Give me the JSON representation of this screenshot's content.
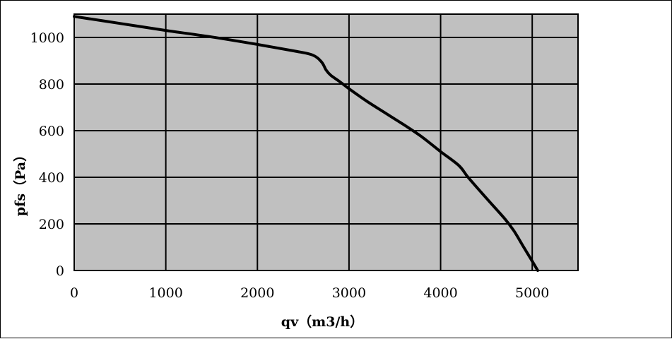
{
  "chart_data": {
    "type": "line",
    "title": "",
    "xlabel": "qv（m3/h）",
    "ylabel": "pfs（Pa）",
    "xlim": [
      0,
      5500
    ],
    "ylim": [
      0,
      1100
    ],
    "x_ticks": [
      0,
      1000,
      2000,
      3000,
      4000,
      5000
    ],
    "y_ticks": [
      0,
      200,
      400,
      600,
      800,
      1000
    ],
    "grid": true,
    "legend": "none",
    "colors": {
      "plot_background": "#c0c0c0",
      "line": "#000000",
      "grid": "#000000"
    },
    "series": [
      {
        "x": [
          0,
          500,
          1000,
          1500,
          2000,
          2400,
          2600,
          2700,
          2750,
          2800,
          2900,
          3000,
          3200,
          3400,
          3600,
          3800,
          4000,
          4200,
          4300,
          4500,
          4700,
          4800,
          4900,
          5000,
          5060
        ],
        "values": [
          1090,
          1060,
          1030,
          1002,
          970,
          942,
          925,
          895,
          860,
          838,
          810,
          780,
          725,
          675,
          625,
          572,
          510,
          450,
          400,
          310,
          222,
          170,
          105,
          40,
          0
        ]
      }
    ]
  }
}
